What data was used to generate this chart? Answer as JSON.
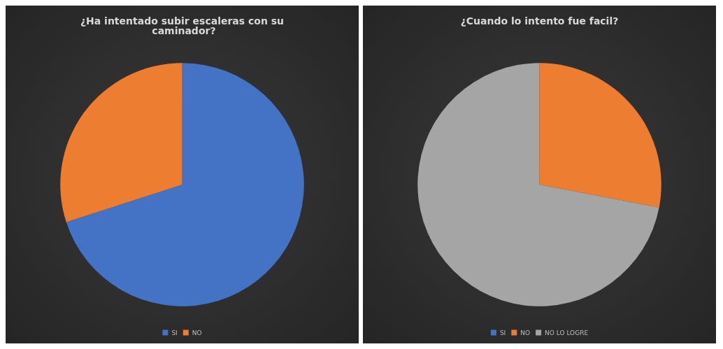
{
  "chart_data": [
    {
      "type": "pie",
      "title": "¿Ha intentado subir escaleras con su caminador?",
      "categories": [
        "SI",
        "NO"
      ],
      "values": [
        70,
        30
      ],
      "colors": [
        "#4472c4",
        "#ed7d31"
      ],
      "legend": "bottom"
    },
    {
      "type": "pie",
      "title": "¿Cuando lo intento fue facil?",
      "categories": [
        "SI",
        "NO",
        "NO LO LOGRE"
      ],
      "values": [
        0,
        28,
        72
      ],
      "colors": [
        "#4472c4",
        "#ed7d31",
        "#a5a5a5"
      ],
      "legend": "bottom"
    }
  ]
}
